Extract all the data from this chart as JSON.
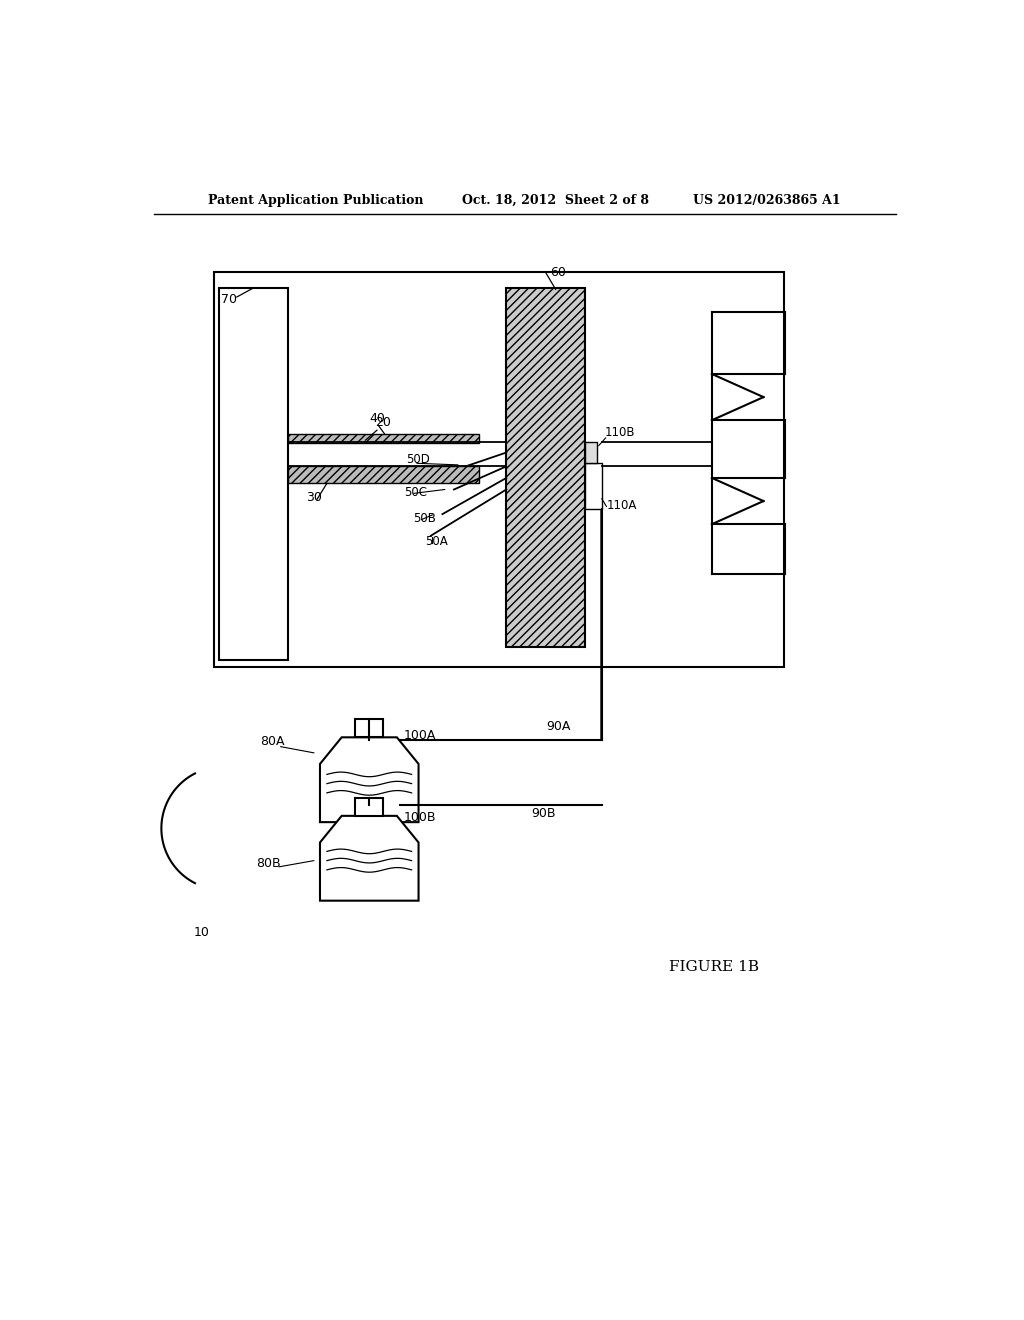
{
  "bg_color": "#ffffff",
  "line_color": "#000000",
  "title_left": "Patent Application Publication",
  "title_mid": "Oct. 18, 2012  Sheet 2 of 8",
  "title_right": "US 2012/0263865 A1",
  "figure_label": "FIGURE 1B",
  "ref_10": "10",
  "ref_20": "20",
  "ref_30": "30",
  "ref_40": "40",
  "ref_50A": "50A",
  "ref_50B": "50B",
  "ref_50C": "50C",
  "ref_50D": "50D",
  "ref_60": "60",
  "ref_70": "70",
  "ref_80A": "80A",
  "ref_80B": "80B",
  "ref_90A": "90A",
  "ref_90B": "90B",
  "ref_100A": "100A",
  "ref_100B": "100B",
  "ref_110A": "110A",
  "ref_110B": "110B"
}
